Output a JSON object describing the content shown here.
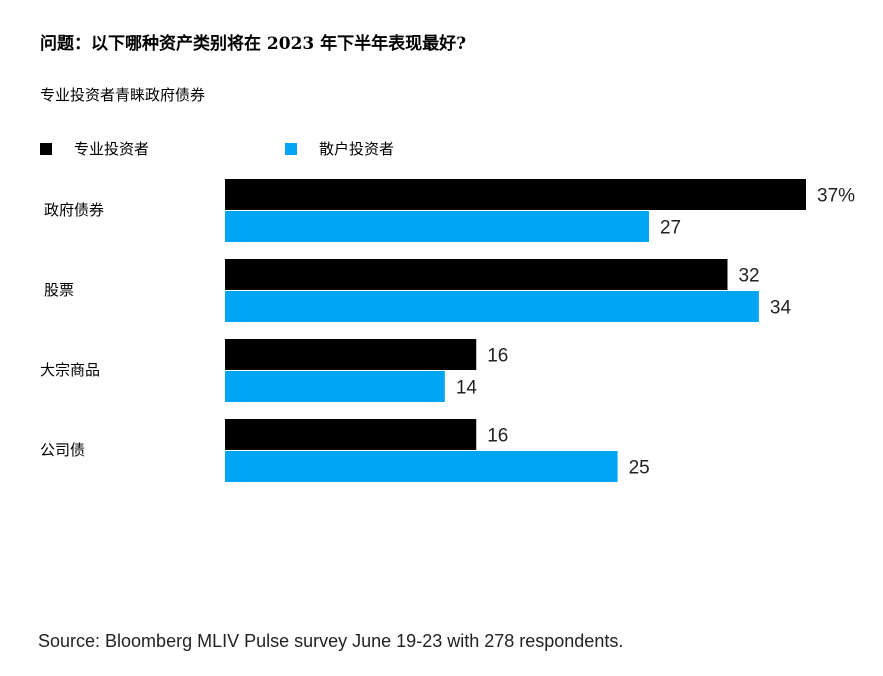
{
  "chart_data": {
    "type": "bar",
    "orientation": "horizontal",
    "title": "问题：以下哪种资产类别将在 2023 年下半年表现最好?",
    "subtitle": "专业投资者青睐政府债券",
    "categories": [
      "政府债券",
      "股票",
      "大宗商品",
      "公司债"
    ],
    "series": [
      {
        "name": "专业投资者",
        "values": [
          37,
          32,
          16,
          16
        ],
        "color": "#000000"
      },
      {
        "name": "散户投资者",
        "values": [
          27,
          34,
          14,
          25
        ],
        "color": "#00a6f5"
      }
    ],
    "value_labels": [
      [
        "37%",
        "32",
        "16",
        "16"
      ],
      [
        "27",
        "34",
        "14",
        "25"
      ]
    ],
    "xlim": [
      0,
      37
    ],
    "unit": "%",
    "legend_position": "top-left",
    "grid": false
  },
  "source": "Source: Bloomberg MLIV Pulse survey June 19-23 with 278 respondents."
}
